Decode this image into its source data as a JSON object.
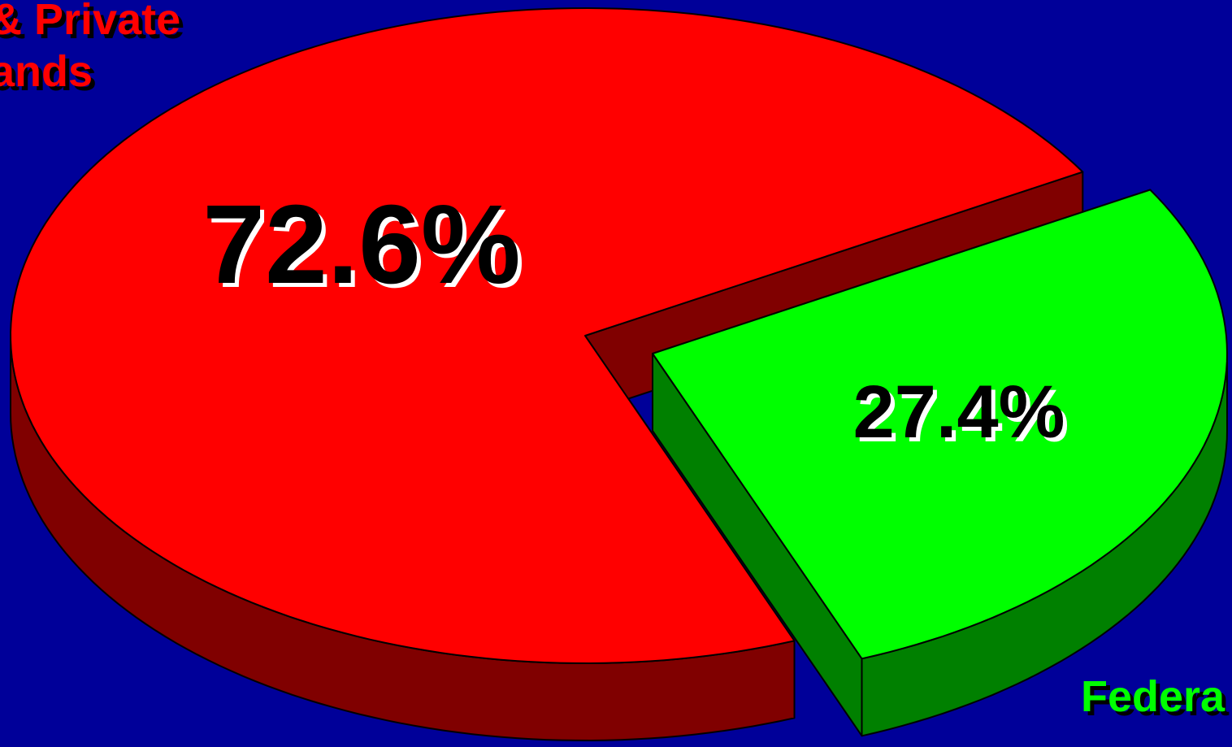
{
  "chart_data": {
    "type": "pie",
    "categories": [
      [
        "& Private",
        "ands"
      ],
      [
        "Federa"
      ]
    ],
    "values": [
      72.6,
      27.4
    ],
    "value_labels": [
      "72.6%",
      "27.4%"
    ],
    "colors": [
      "#ff0000",
      "#00ff00"
    ],
    "side_colors": [
      "#800000",
      "#008000"
    ],
    "explode": [
      false,
      true
    ],
    "three_d": true
  }
}
